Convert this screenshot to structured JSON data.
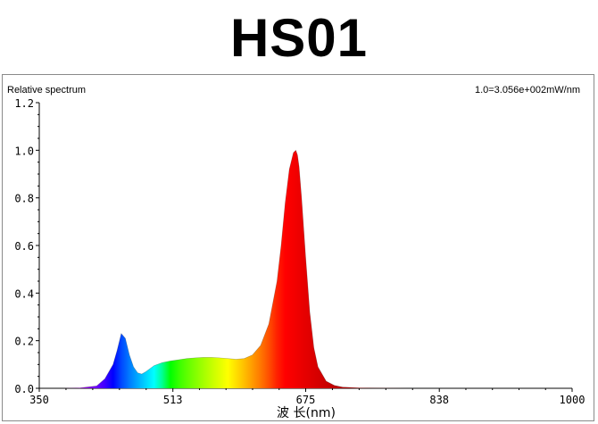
{
  "title": "HS01",
  "chart_data": {
    "type": "area",
    "subtitle_left": "Relative spectrum",
    "subtitle_right": "1.0=3.056e+002mW/nm",
    "xlabel": "波 长(nm)",
    "ylabel": "",
    "xlim": [
      350,
      1000
    ],
    "ylim": [
      0.0,
      1.2
    ],
    "x_ticks": [
      350,
      513,
      675,
      838,
      1000
    ],
    "x_tick_labels": [
      "350",
      "513",
      "675",
      "838",
      "1000"
    ],
    "y_ticks": [
      0.0,
      0.2,
      0.4,
      0.6,
      0.8,
      1.0,
      1.2
    ],
    "y_tick_labels": [
      "0.0",
      "0.2",
      "0.4",
      "0.6",
      "0.8",
      "1.0",
      "1.2"
    ],
    "grid": false,
    "fill": "wavelength-color",
    "series": [
      {
        "x": [
          350,
          380,
          400,
          420,
          430,
          440,
          445,
          450,
          455,
          460,
          465,
          470,
          475,
          480,
          490,
          500,
          510,
          520,
          530,
          540,
          550,
          560,
          570,
          580,
          590,
          600,
          610,
          620,
          630,
          640,
          645,
          650,
          655,
          660,
          663,
          665,
          667,
          670,
          675,
          680,
          685,
          690,
          700,
          710,
          720,
          740,
          760,
          800,
          850,
          900,
          950,
          1000
        ],
        "y": [
          0.0,
          0.0,
          0.002,
          0.01,
          0.04,
          0.1,
          0.16,
          0.23,
          0.21,
          0.14,
          0.09,
          0.065,
          0.06,
          0.07,
          0.095,
          0.108,
          0.115,
          0.12,
          0.125,
          0.128,
          0.13,
          0.13,
          0.128,
          0.125,
          0.122,
          0.125,
          0.14,
          0.18,
          0.27,
          0.45,
          0.6,
          0.78,
          0.92,
          0.99,
          1.0,
          0.98,
          0.93,
          0.8,
          0.55,
          0.32,
          0.17,
          0.09,
          0.03,
          0.012,
          0.005,
          0.002,
          0.001,
          0.0,
          0.0,
          0.0,
          0.0,
          0.0
        ]
      }
    ]
  }
}
